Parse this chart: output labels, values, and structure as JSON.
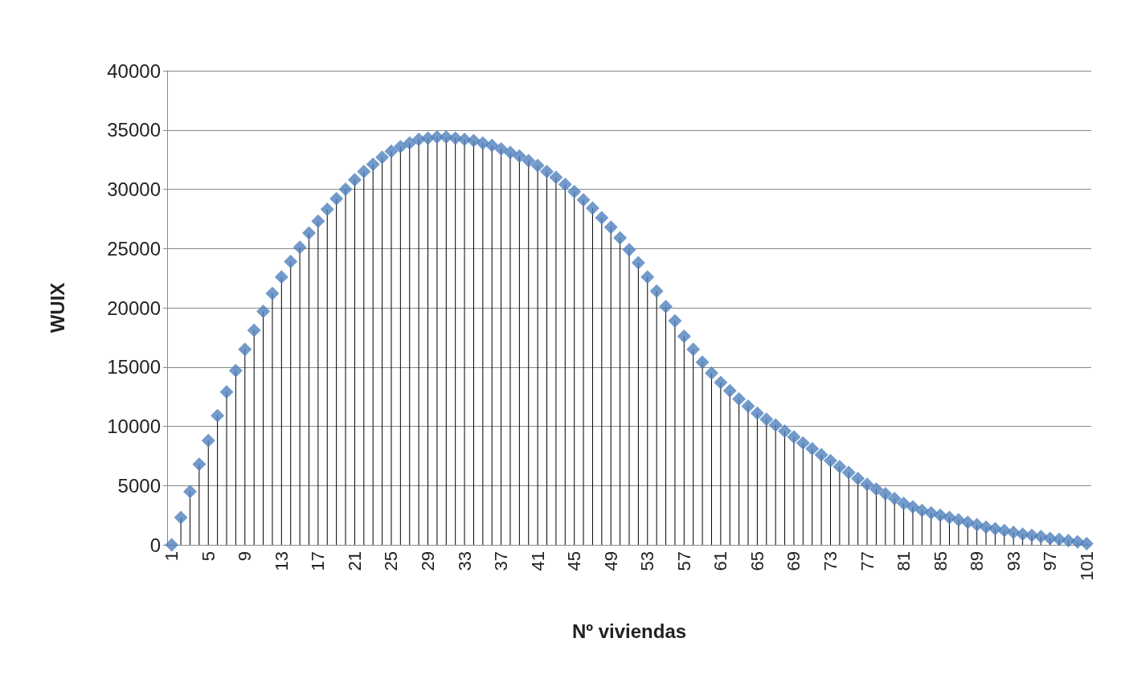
{
  "chart_data": {
    "type": "lollipop",
    "xlabel": "Nº viviendas",
    "ylabel": "WUIX",
    "categories": [
      "1",
      null,
      null,
      null,
      "5",
      null,
      null,
      null,
      "9",
      null,
      null,
      null,
      "13",
      null,
      null,
      null,
      "17",
      null,
      null,
      null,
      "21",
      null,
      null,
      null,
      "25",
      null,
      null,
      null,
      "29",
      null,
      null,
      null,
      "33",
      null,
      null,
      null,
      "37",
      null,
      null,
      null,
      "41",
      null,
      null,
      null,
      "45",
      null,
      null,
      null,
      "49",
      null,
      null,
      null,
      "53",
      null,
      null,
      null,
      "57",
      null,
      null,
      null,
      "61",
      null,
      null,
      null,
      "65",
      null,
      null,
      null,
      "69",
      null,
      null,
      null,
      "73",
      null,
      null,
      null,
      "77",
      null,
      null,
      null,
      "81",
      null,
      null,
      null,
      "85",
      null,
      null,
      null,
      "89",
      null,
      null,
      null,
      "93",
      null,
      null,
      null,
      "97",
      null,
      null,
      null,
      "101"
    ],
    "series": [
      {
        "color": "#4f81bd",
        "values": [
          0,
          2300,
          4500,
          6800,
          8800,
          10900,
          12900,
          14700,
          16500,
          18100,
          19700,
          21200,
          22600,
          23900,
          25100,
          26300,
          27300,
          28300,
          29200,
          30000,
          30800,
          31500,
          32100,
          32700,
          33200,
          33600,
          33900,
          34200,
          34300,
          34400,
          34400,
          34300,
          34200,
          34100,
          33900,
          33700,
          33400,
          33100,
          32800,
          32400,
          32000,
          31500,
          31000,
          30400,
          29800,
          29100,
          28400,
          27600,
          26800,
          25900,
          24900,
          23800,
          22600,
          21400,
          20100,
          18900,
          17600,
          16500,
          15400,
          14500,
          13700,
          13000,
          12300,
          11700,
          11100,
          10600,
          10100,
          9600,
          9100,
          8600,
          8100,
          7600,
          7100,
          6600,
          6100,
          5600,
          5100,
          4700,
          4300,
          3900,
          3500,
          3200,
          2900,
          2700,
          2500,
          2300,
          2100,
          1900,
          1700,
          1500,
          1350,
          1200,
          1050,
          900,
          800,
          700,
          550,
          450,
          350,
          250,
          100
        ]
      }
    ],
    "ylim": [
      0,
      40000
    ],
    "yticks": [
      0,
      5000,
      10000,
      15000,
      20000,
      25000,
      30000,
      35000,
      40000
    ],
    "grid": "y",
    "marker": "diamond"
  }
}
